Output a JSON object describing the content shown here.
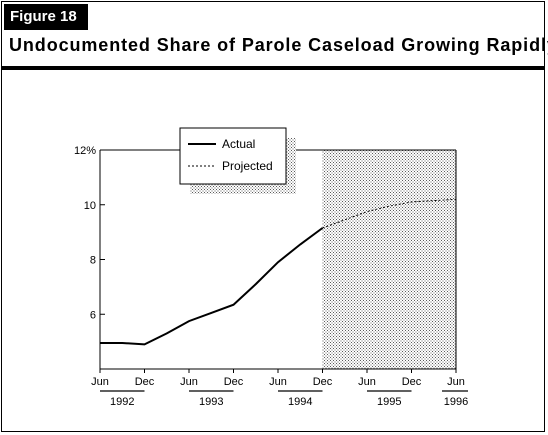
{
  "figure_label": "Figure 18",
  "title": "Undocumented Share of Parole Caseload Growing Rapidly",
  "colors": {
    "frame": "#000000",
    "shade": "#d9d9d9",
    "line": "#000000"
  },
  "chart_data": {
    "type": "line",
    "title": "Undocumented Share of Parole Caseload Growing Rapidly",
    "xlabel": "",
    "ylabel": "",
    "x_ticks": [
      "Jun",
      "Dec",
      "Jun",
      "Dec",
      "Jun",
      "Dec",
      "Jun",
      "Dec",
      "Jun"
    ],
    "year_labels": [
      "1992",
      "1993",
      "1994",
      "1995",
      "1996"
    ],
    "y_ticks": [
      "6",
      "8",
      "10",
      "12%"
    ],
    "ylim": [
      4,
      12
    ],
    "xlim": [
      "1992-06",
      "1996-06"
    ],
    "grid": false,
    "legend_position": "top-left",
    "shaded_region": {
      "from": "1994-12",
      "to": "1996-06",
      "label": "Projected period"
    },
    "series": [
      {
        "name": "Actual",
        "style": "solid",
        "points": [
          [
            "1992-06",
            4.95
          ],
          [
            "1992-09",
            4.95
          ],
          [
            "1992-12",
            4.9
          ],
          [
            "1993-03",
            5.3
          ],
          [
            "1993-06",
            5.75
          ],
          [
            "1993-09",
            6.05
          ],
          [
            "1993-12",
            6.35
          ],
          [
            "1994-03",
            7.1
          ],
          [
            "1994-06",
            7.9
          ],
          [
            "1994-09",
            8.55
          ],
          [
            "1994-12",
            9.15
          ]
        ]
      },
      {
        "name": "Projected",
        "style": "dashed",
        "points": [
          [
            "1994-12",
            9.15
          ],
          [
            "1995-03",
            9.45
          ],
          [
            "1995-06",
            9.75
          ],
          [
            "1995-09",
            9.95
          ],
          [
            "1995-12",
            10.1
          ],
          [
            "1996-03",
            10.15
          ],
          [
            "1996-06",
            10.2
          ]
        ]
      }
    ]
  }
}
